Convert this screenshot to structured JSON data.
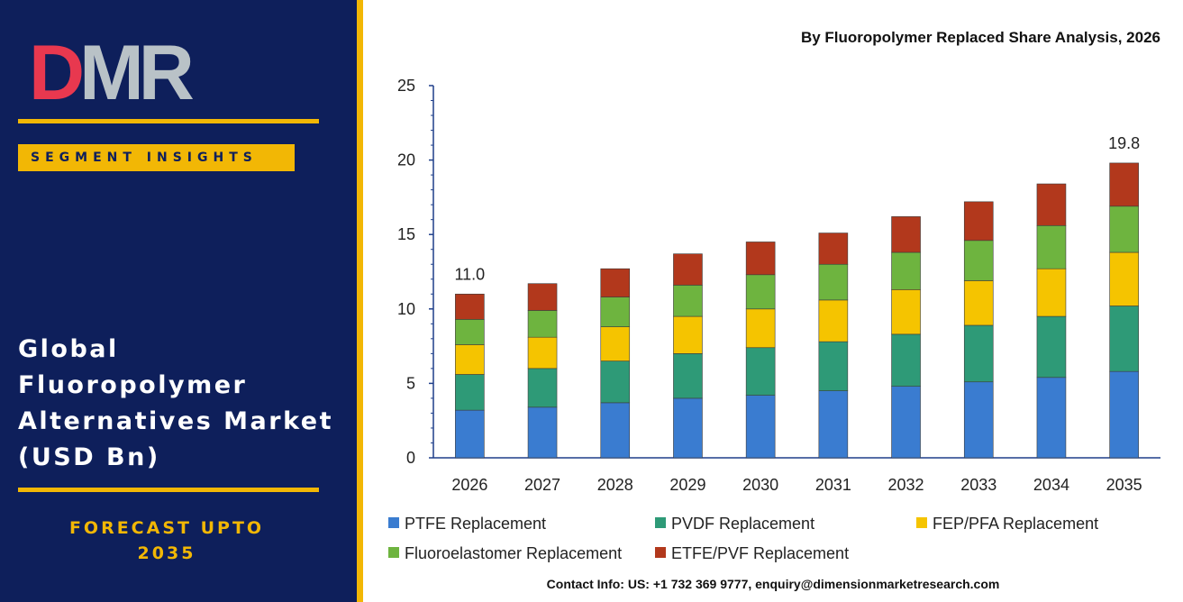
{
  "brand": {
    "logo_text": "DMR"
  },
  "colors": {
    "panel_bg": "#0e1f5b",
    "accent": "#f2b705",
    "logo_d": "#e8384f",
    "logo_m": "#b9c2c7",
    "logo_r": "#b9c2c7"
  },
  "left_panel": {
    "badge": "SEGMENT INSIGHTS",
    "title_lines": [
      "Global",
      "Fluoropolymer",
      "Alternatives Market",
      "(USD Bn)"
    ],
    "forecast_lines": [
      "FORECAST UPTO",
      "2035"
    ]
  },
  "chart_data": {
    "type": "bar",
    "stacked": true,
    "title": "By Fluoropolymer Replaced Share Analysis, 2026",
    "xlabel": "",
    "ylabel": "",
    "ylim": [
      0,
      25
    ],
    "yticks": [
      0,
      5,
      10,
      15,
      20,
      25
    ],
    "grid": false,
    "legend_position": "bottom",
    "categories": [
      "2026",
      "2027",
      "2028",
      "2029",
      "2030",
      "2031",
      "2032",
      "2033",
      "2034",
      "2035"
    ],
    "series": [
      {
        "name": "PTFE Replacement",
        "color": "#3a7cd0",
        "values": [
          3.2,
          3.4,
          3.7,
          4.0,
          4.2,
          4.5,
          4.8,
          5.1,
          5.4,
          5.8
        ]
      },
      {
        "name": "PVDF Replacement",
        "color": "#2e9a77",
        "values": [
          2.4,
          2.6,
          2.8,
          3.0,
          3.2,
          3.3,
          3.5,
          3.8,
          4.1,
          4.4
        ]
      },
      {
        "name": "FEP/PFA Replacement",
        "color": "#f5c400",
        "values": [
          2.0,
          2.1,
          2.3,
          2.5,
          2.6,
          2.8,
          3.0,
          3.0,
          3.2,
          3.6
        ]
      },
      {
        "name": "Fluoroelastomer Replacement",
        "color": "#6eb43f",
        "values": [
          1.7,
          1.8,
          2.0,
          2.1,
          2.3,
          2.4,
          2.5,
          2.7,
          2.9,
          3.1
        ]
      },
      {
        "name": "ETFE/PVF Replacement",
        "color": "#b2381c",
        "values": [
          1.7,
          1.8,
          1.9,
          2.1,
          2.2,
          2.1,
          2.4,
          2.6,
          2.8,
          2.9
        ]
      }
    ],
    "annotations": [
      {
        "category": "2026",
        "text": "11.0"
      },
      {
        "category": "2035",
        "text": "19.8"
      }
    ]
  },
  "contact": "Contact Info: US: +1 732 369 9777, enquiry@dimensionmarketresearch.com"
}
